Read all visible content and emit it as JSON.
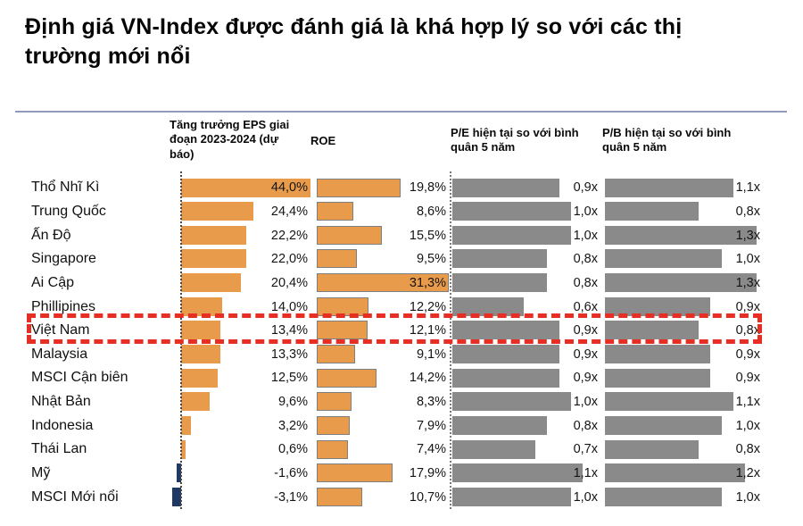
{
  "title": "Định giá VN-Index được đánh giá là khá hợp lý so với các thị trường mới nổi",
  "columns": {
    "eps": "Tăng trưởng EPS giai đoạn 2023-2024 (dự báo)",
    "roe": "ROE",
    "pe": "P/E hiện tại so với bình quân 5 năm",
    "pb": "P/B hiện tại so với bình quân 5 năm"
  },
  "highlight": {
    "category": "Việt Nam",
    "index": 6,
    "color": "#e62e23"
  },
  "colors": {
    "positive_bar": "#e89b4b",
    "negative_bar": "#1f3864",
    "ratio_bar": "#8a8a8a",
    "divider": "#8f9bb8"
  },
  "chart_data": {
    "type": "bar",
    "orientation": "horizontal",
    "categories": [
      "Thổ Nhĩ Kì",
      "Trung Quốc",
      "Ấn Độ",
      "Singapore",
      "Ai Cập",
      "Phillipines",
      "Việt Nam",
      "Malaysia",
      "MSCI Cận biên",
      "Nhật Bản",
      "Indonesia",
      "Thái Lan",
      "Mỹ",
      "MSCI Mới nổi"
    ],
    "series": [
      {
        "name": "Tăng trưởng EPS giai đoạn 2023-2024 (dự báo)",
        "unit": "%",
        "values": [
          44.0,
          24.4,
          22.2,
          22.0,
          20.4,
          14.0,
          13.4,
          13.3,
          12.5,
          9.6,
          3.2,
          0.6,
          -1.6,
          -3.1
        ],
        "labels": [
          "44,0%",
          "24,4%",
          "22,2%",
          "22,0%",
          "20,4%",
          "14,0%",
          "13,4%",
          "13,3%",
          "12,5%",
          "9,6%",
          "3,2%",
          "0,6%",
          "-1,6%",
          "-3,1%"
        ]
      },
      {
        "name": "ROE",
        "unit": "%",
        "values": [
          19.8,
          8.6,
          15.5,
          9.5,
          31.3,
          12.2,
          12.1,
          9.1,
          14.2,
          8.3,
          7.9,
          7.4,
          17.9,
          10.7
        ],
        "labels": [
          "19,8%",
          "8,6%",
          "15,5%",
          "9,5%",
          "31,3%",
          "12,2%",
          "12,1%",
          "9,1%",
          "14,2%",
          "8,3%",
          "7,9%",
          "7,4%",
          "17,9%",
          "10,7%"
        ]
      },
      {
        "name": "P/E hiện tại so với bình quân 5 năm",
        "unit": "x",
        "values": [
          0.9,
          1.0,
          1.0,
          0.8,
          0.8,
          0.6,
          0.9,
          0.9,
          0.9,
          1.0,
          0.8,
          0.7,
          1.1,
          1.0
        ],
        "labels": [
          "0,9x",
          "1,0x",
          "1,0x",
          "0,8x",
          "0,8x",
          "0,6x",
          "0,9x",
          "0,9x",
          "0,9x",
          "1,0x",
          "0,8x",
          "0,7x",
          "1,1x",
          "1,0x"
        ]
      },
      {
        "name": "P/B hiện tại so với bình quân 5 năm",
        "unit": "x",
        "values": [
          1.1,
          0.8,
          1.3,
          1.0,
          1.3,
          0.9,
          0.8,
          0.9,
          0.9,
          1.1,
          1.0,
          0.8,
          1.2,
          1.0
        ],
        "labels": [
          "1,1x",
          "0,8x",
          "1,3x",
          "1,0x",
          "1,3x",
          "0,9x",
          "0,8x",
          "0,9x",
          "0,9x",
          "1,1x",
          "1,0x",
          "0,8x",
          "1,2x",
          "1,0x"
        ]
      }
    ]
  }
}
